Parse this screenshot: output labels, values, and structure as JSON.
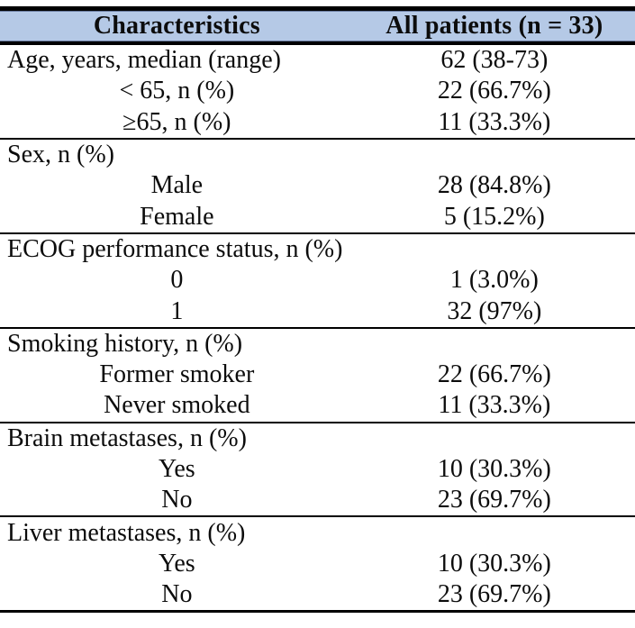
{
  "theme": {
    "header_bg": "#b5c9e6",
    "rule_color": "#000000",
    "text_color": "#0c0c0c",
    "page_bg": "#ffffff"
  },
  "table": {
    "columns": [
      {
        "label": "Characteristics"
      },
      {
        "label": "All patients (n = 33)"
      }
    ],
    "rows": [
      {
        "label": "Age, years, median (range)",
        "value": "62 (38-73)",
        "label_align": "left",
        "divider_above": false
      },
      {
        "label": "< 65, n (%)",
        "value": "22 (66.7%)",
        "label_align": "center",
        "divider_above": false
      },
      {
        "label": "≥65, n (%)",
        "value": "11 (33.3%)",
        "label_align": "center",
        "divider_above": false
      },
      {
        "label": "Sex, n (%)",
        "value": "",
        "label_align": "left",
        "divider_above": true
      },
      {
        "label": "Male",
        "value": "28 (84.8%)",
        "label_align": "center",
        "divider_above": false
      },
      {
        "label": "Female",
        "value": "5 (15.2%)",
        "label_align": "center",
        "divider_above": false
      },
      {
        "label": "ECOG performance status, n (%)",
        "value": "",
        "label_align": "left",
        "divider_above": true
      },
      {
        "label": "0",
        "value": "1 (3.0%)",
        "label_align": "center",
        "divider_above": false
      },
      {
        "label": "1",
        "value": "32 (97%)",
        "label_align": "center",
        "divider_above": false
      },
      {
        "label": "Smoking history, n (%)",
        "value": "",
        "label_align": "left",
        "divider_above": true
      },
      {
        "label": "Former smoker",
        "value": "22 (66.7%)",
        "label_align": "center",
        "divider_above": false
      },
      {
        "label": "Never smoked",
        "value": "11 (33.3%)",
        "label_align": "center",
        "divider_above": false
      },
      {
        "label": "Brain metastases, n (%)",
        "value": "",
        "label_align": "left",
        "divider_above": true
      },
      {
        "label": "Yes",
        "value": "10 (30.3%)",
        "label_align": "center",
        "divider_above": false
      },
      {
        "label": "No",
        "value": "23 (69.7%)",
        "label_align": "center",
        "divider_above": false
      },
      {
        "label": "Liver metastases, n (%)",
        "value": "",
        "label_align": "left",
        "divider_above": true
      },
      {
        "label": "Yes",
        "value": "10 (30.3%)",
        "label_align": "center",
        "divider_above": false
      },
      {
        "label": "No",
        "value": "23 (69.7%)",
        "label_align": "center",
        "divider_above": false
      }
    ]
  }
}
